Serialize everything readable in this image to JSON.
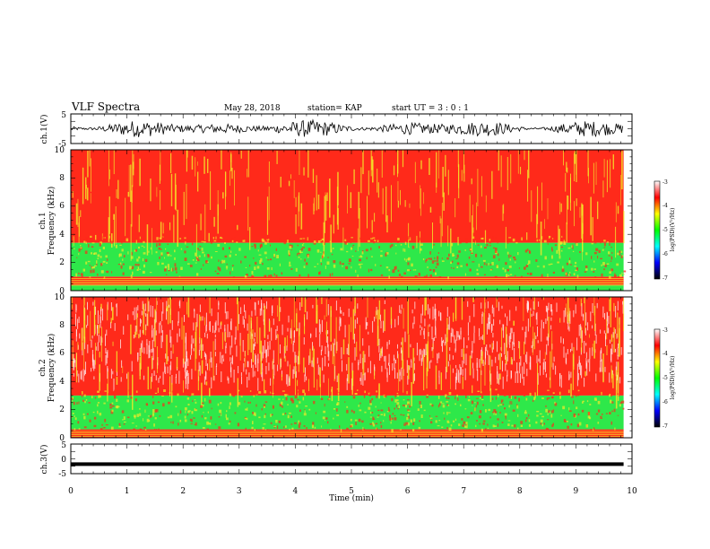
{
  "header": {
    "title": "VLF Spectra",
    "date": "May 28, 2018",
    "station": "station= KAP",
    "start": "start  UT =  3 : 0  : 1"
  },
  "colors": {
    "trace": "#000000",
    "spectrogram_red": "#ff2a1a",
    "spectrogram_yellow": "#f4ea2a",
    "spectrogram_green": "#2ee84a",
    "spectrogram_white": "#fff2f2"
  },
  "chart_data": [
    {
      "type": "line",
      "ylabel": "ch.1(V)",
      "ylim": [
        -5,
        5
      ],
      "yticks": [
        "5",
        "-5"
      ],
      "xlim": [
        0,
        10
      ],
      "series": [
        {
          "amplitude_range": [
            -3,
            3
          ]
        }
      ]
    },
    {
      "type": "heatmap",
      "ylabel": "ch.1 Frequency (kHz)",
      "ylabel_lines": [
        "ch.1",
        "Frequency  (kHz)"
      ],
      "ylim": [
        0,
        10
      ],
      "yticks": [
        "0",
        "2",
        "4",
        "6",
        "8",
        "10"
      ],
      "xlim": [
        0,
        10
      ],
      "data_end_min": 9.85,
      "bands": [
        {
          "from_khz": 0,
          "to_khz": 0.4,
          "level": "mixed-low"
        },
        {
          "from_khz": 0.4,
          "to_khz": 1.0,
          "level": "red-lines"
        },
        {
          "from_khz": 1.0,
          "to_khz": 3.4,
          "level": "green"
        },
        {
          "from_khz": 3.4,
          "to_khz": 10,
          "level": "red"
        }
      ]
    },
    {
      "type": "heatmap",
      "ylabel": "ch.2 Frequency (kHz)",
      "ylabel_lines": [
        "ch.2",
        "Frequency  (kHz)"
      ],
      "ylim": [
        0,
        10
      ],
      "yticks": [
        "0",
        "2",
        "4",
        "6",
        "8",
        "10"
      ],
      "xlim": [
        0,
        10
      ],
      "data_end_min": 9.85,
      "bands": [
        {
          "from_khz": 0,
          "to_khz": 0.6,
          "level": "red-lines"
        },
        {
          "from_khz": 0.6,
          "to_khz": 3.0,
          "level": "green"
        },
        {
          "from_khz": 3.0,
          "to_khz": 10,
          "level": "red-white"
        }
      ]
    },
    {
      "type": "line",
      "ylabel": "ch.3(V)",
      "ylim": [
        -5,
        5
      ],
      "yticks": [
        "5",
        "0",
        "-5"
      ],
      "xlim": [
        0,
        10
      ],
      "xlabel": "Time  (min)",
      "xticks": [
        "0",
        "1",
        "2",
        "3",
        "4",
        "5",
        "6",
        "7",
        "8",
        "9",
        "10"
      ],
      "series": [
        {
          "constant": -1.8
        }
      ]
    }
  ],
  "colorbars": [
    {
      "label": "log(PSD)(V²/Hz)",
      "range": [
        -7,
        -3
      ],
      "ticks": [
        "-3",
        "-4",
        "-5",
        "-6",
        "-7"
      ],
      "stops": [
        "#ffffff",
        "#ff0000",
        "#ffff00",
        "#00ff00",
        "#00ffff",
        "#0000ff",
        "#000000"
      ]
    },
    {
      "label": "log(PSD)(V²/Hz)",
      "range": [
        -7,
        -3
      ],
      "ticks": [
        "-3",
        "-4",
        "-5",
        "-6",
        "-7"
      ],
      "stops": [
        "#ffffff",
        "#ff0000",
        "#ffff00",
        "#00ff00",
        "#00ffff",
        "#0000ff",
        "#000000"
      ]
    }
  ]
}
